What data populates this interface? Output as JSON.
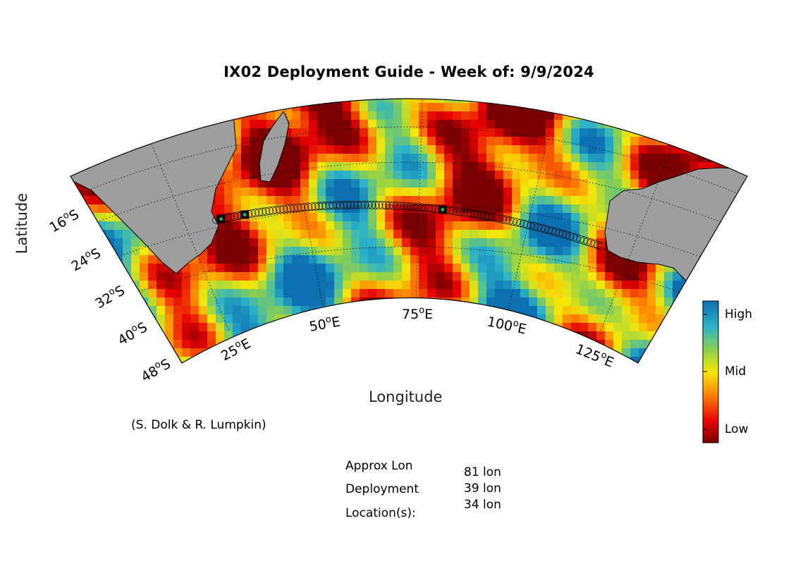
{
  "title": "IX02 Deployment Guide - Week of: 9/9/2024",
  "xlabel": "Longitude",
  "ylabel": "Latitude",
  "credit": "(S. Dolk & R. Lumpkin)",
  "lon_ticks": [
    "25",
    "50",
    "75",
    "100",
    "125"
  ],
  "lon_suffix": "E",
  "lat_ticks": [
    "16",
    "24",
    "32",
    "40",
    "48"
  ],
  "lat_suffix": "S",
  "colorbar": {
    "high": "High",
    "mid": "Mid",
    "low": "Low"
  },
  "location_labels": [
    "Approx Lon",
    "Deployment",
    "Location(s):"
  ],
  "location_values": [
    "81 lon",
    "39 lon",
    "34 lon"
  ],
  "colors": {
    "land": "#9e9e9e",
    "high": "#0b6fb0",
    "mid": "#f4e70a",
    "low": "#7a0000"
  },
  "map_data": {
    "track": {
      "start_lon": 33,
      "end_lon": 115
    },
    "deployments_lon": [
      81,
      39,
      34
    ]
  }
}
